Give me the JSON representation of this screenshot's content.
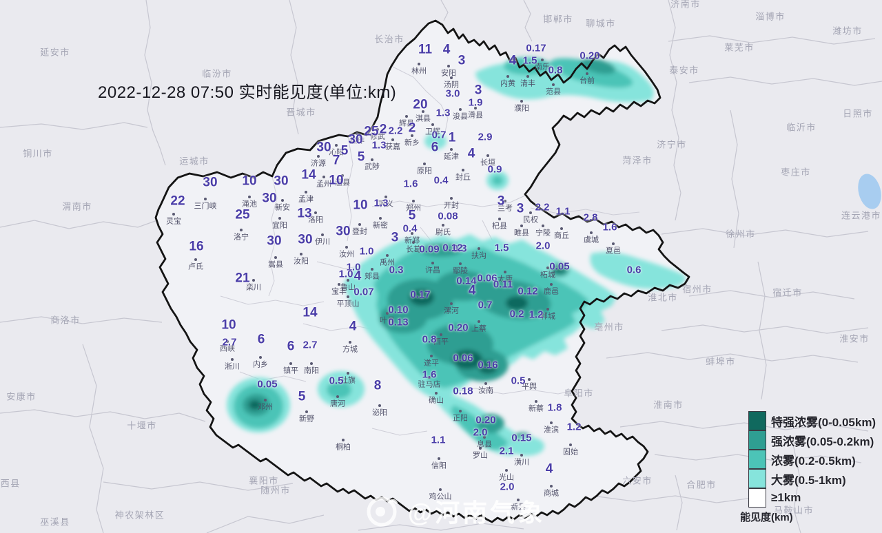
{
  "title": "2022-12-28 07:50 实时能见度(单位:km)",
  "watermark": "@河南气象",
  "legend": {
    "title": "能见度(km)",
    "items": [
      {
        "label": "特强浓雾(0-0.05km)",
        "color": "#10695e"
      },
      {
        "label": "强浓雾(0.05-0.2km)",
        "color": "#2f9e92"
      },
      {
        "label": "浓雾(0.2-0.5km)",
        "color": "#4cc4b7"
      },
      {
        "label": "大雾(0.5-1km)",
        "color": "#86e4dc"
      },
      {
        "label": "≥1km",
        "color": "#ffffff"
      }
    ]
  },
  "colors": {
    "background": "#eaeaef",
    "province_border": "#141414",
    "boundary_lines": "#c3c3cd",
    "value_text": "#4a3da8",
    "place_text": "#4b4b64",
    "outside_text": "#a4a5b4"
  },
  "values": [
    [
      "11",
      617,
      72
    ],
    [
      "4",
      648,
      72
    ],
    [
      "3",
      670,
      88
    ],
    [
      "0.17",
      778,
      70
    ],
    [
      "4",
      744,
      88
    ],
    [
      "1.5",
      769,
      88
    ],
    [
      "0.8",
      806,
      102
    ],
    [
      "0.20",
      856,
      81
    ],
    [
      "3.0",
      657,
      136
    ],
    [
      "3",
      694,
      131
    ],
    [
      "1.9",
      690,
      149
    ],
    [
      "20",
      610,
      152
    ],
    [
      "1.3",
      643,
      164
    ],
    [
      "25",
      539,
      191
    ],
    [
      "2",
      556,
      188
    ],
    [
      "2.2",
      574,
      190
    ],
    [
      "2",
      598,
      186
    ],
    [
      "0.7",
      637,
      196
    ],
    [
      "1",
      656,
      200
    ],
    [
      "6",
      631,
      214
    ],
    [
      "2.9",
      704,
      199
    ],
    [
      "4",
      684,
      223
    ],
    [
      "30",
      516,
      203
    ],
    [
      "1.3",
      550,
      211
    ],
    [
      "30",
      470,
      214
    ],
    [
      "5",
      500,
      219
    ],
    [
      "5",
      524,
      228
    ],
    [
      "7",
      488,
      233
    ],
    [
      "14",
      448,
      254
    ],
    [
      "10",
      488,
      262
    ],
    [
      "1.6",
      596,
      267
    ],
    [
      "0.4",
      640,
      262
    ],
    [
      "0.9",
      718,
      246
    ],
    [
      "30",
      305,
      265
    ],
    [
      "10",
      362,
      263
    ],
    [
      "30",
      408,
      263
    ],
    [
      "22",
      258,
      292
    ],
    [
      "25",
      352,
      312
    ],
    [
      "13",
      442,
      310
    ],
    [
      "16",
      285,
      358
    ],
    [
      "30",
      398,
      350
    ],
    [
      "30",
      443,
      348
    ],
    [
      "30",
      391,
      288
    ],
    [
      "21",
      352,
      404
    ],
    [
      "10",
      523,
      298
    ],
    [
      "1.3",
      553,
      295
    ],
    [
      "5",
      598,
      313
    ],
    [
      "0.4",
      595,
      332
    ],
    [
      "3",
      573,
      345
    ],
    [
      "0.08",
      650,
      314
    ],
    [
      "30",
      498,
      336
    ],
    [
      "1.0",
      532,
      365
    ],
    [
      "1.0",
      513,
      388
    ],
    [
      "1.0",
      502,
      398
    ],
    [
      "4",
      519,
      401
    ],
    [
      "0.3",
      667,
      361
    ],
    [
      "0.09",
      623,
      362
    ],
    [
      "0.12",
      657,
      360
    ],
    [
      "0.3",
      575,
      392
    ],
    [
      "3",
      727,
      292
    ],
    [
      "3",
      755,
      303
    ],
    [
      "2.2",
      787,
      301
    ],
    [
      "1.1",
      817,
      307
    ],
    [
      "2.8",
      857,
      316
    ],
    [
      "1.6",
      885,
      330
    ],
    [
      "1.5",
      728,
      360
    ],
    [
      "2.0",
      788,
      357
    ],
    [
      "0.05",
      812,
      387
    ],
    [
      "0.6",
      920,
      392
    ],
    [
      "0.07",
      528,
      424
    ],
    [
      "0.17",
      610,
      428
    ],
    [
      "0.10",
      578,
      450
    ],
    [
      "0.13",
      578,
      468
    ],
    [
      "0.14",
      677,
      408
    ],
    [
      "0.06",
      707,
      404
    ],
    [
      "0.11",
      730,
      413
    ],
    [
      "0.12",
      766,
      423
    ],
    [
      "4",
      685,
      422
    ],
    [
      "0.7",
      704,
      443
    ],
    [
      "0.2",
      750,
      456
    ],
    [
      "1.2",
      778,
      457
    ],
    [
      "0.20",
      665,
      476
    ],
    [
      "0.8",
      623,
      493
    ],
    [
      "0.06",
      672,
      520
    ],
    [
      "0.16",
      708,
      530
    ],
    [
      "1.6",
      623,
      544
    ],
    [
      "0.18",
      672,
      568
    ],
    [
      "0.5",
      752,
      553
    ],
    [
      "14",
      450,
      454
    ],
    [
      "4",
      512,
      474
    ],
    [
      "10",
      332,
      472
    ],
    [
      "2.7",
      333,
      497
    ],
    [
      "6",
      379,
      493
    ],
    [
      "6",
      422,
      503
    ],
    [
      "2.7",
      450,
      501
    ],
    [
      "0.05",
      388,
      558
    ],
    [
      "5",
      438,
      576
    ],
    [
      "0.5",
      488,
      553
    ],
    [
      "8",
      548,
      560
    ],
    [
      "1.8",
      805,
      592
    ],
    [
      "0.20",
      705,
      610
    ],
    [
      "2.0",
      697,
      628
    ],
    [
      "0.15",
      757,
      636
    ],
    [
      "1.2",
      833,
      620
    ],
    [
      "1.1",
      636,
      639
    ],
    [
      "2.1",
      735,
      655
    ],
    [
      "2.0",
      736,
      707
    ],
    [
      "4",
      797,
      681
    ]
  ],
  "places": [
    [
      "林州",
      608,
      104
    ],
    [
      "安阳",
      651,
      107
    ],
    [
      "汤阴",
      655,
      124
    ],
    [
      "内黄",
      737,
      122
    ],
    [
      "清丰",
      766,
      122
    ],
    [
      "南乐",
      787,
      98
    ],
    [
      "台前",
      852,
      118
    ],
    [
      "范县",
      803,
      134
    ],
    [
      "濮阳",
      757,
      158
    ],
    [
      "淇县",
      614,
      173
    ],
    [
      "浚县",
      668,
      170
    ],
    [
      "滑县",
      690,
      168
    ],
    [
      "卫辉",
      628,
      192
    ],
    [
      "辉县",
      590,
      180
    ],
    [
      "新乡",
      598,
      208
    ],
    [
      "获嘉",
      570,
      214
    ],
    [
      "修武",
      548,
      199
    ],
    [
      "焦作",
      518,
      205
    ],
    [
      "沁阳",
      488,
      222
    ],
    [
      "济源",
      462,
      238
    ],
    [
      "孟州",
      470,
      268
    ],
    [
      "温县",
      497,
      266
    ],
    [
      "武陟",
      540,
      243
    ],
    [
      "原阳",
      616,
      249
    ],
    [
      "延津",
      655,
      228
    ],
    [
      "封丘",
      672,
      258
    ],
    [
      "长垣",
      708,
      237
    ],
    [
      "三门峡",
      298,
      300
    ],
    [
      "灵宝",
      252,
      322
    ],
    [
      "渑池",
      362,
      297
    ],
    [
      "新安",
      410,
      302
    ],
    [
      "孟津",
      444,
      290
    ],
    [
      "洛阳",
      458,
      320
    ],
    [
      "宜阳",
      406,
      328
    ],
    [
      "洛宁",
      350,
      345
    ],
    [
      "卢氏",
      284,
      388
    ],
    [
      "栾川",
      368,
      418
    ],
    [
      "嵩县",
      400,
      385
    ],
    [
      "汝阳",
      437,
      380
    ],
    [
      "伊川",
      468,
      352
    ],
    [
      "巩义",
      560,
      297
    ],
    [
      "郑州",
      600,
      303
    ],
    [
      "新密",
      552,
      328
    ],
    [
      "新郑",
      598,
      350
    ],
    [
      "登封",
      522,
      337
    ],
    [
      "汝州",
      503,
      370
    ],
    [
      "郏县",
      540,
      402
    ],
    [
      "禹州",
      562,
      382
    ],
    [
      "开封",
      655,
      299
    ],
    [
      "尉氏",
      643,
      338
    ],
    [
      "长葛",
      600,
      363
    ],
    [
      "许昌",
      628,
      393
    ],
    [
      "鄢陵",
      668,
      394
    ],
    [
      "扶沟",
      695,
      372
    ],
    [
      "兰考",
      733,
      303
    ],
    [
      "杞县",
      725,
      329
    ],
    [
      "民权",
      770,
      320
    ],
    [
      "睢县",
      757,
      339
    ],
    [
      "宁陵",
      788,
      339
    ],
    [
      "商丘",
      815,
      343
    ],
    [
      "虞城",
      858,
      349
    ],
    [
      "夏邑",
      890,
      365
    ],
    [
      "柘城",
      795,
      400
    ],
    [
      "太康",
      733,
      406
    ],
    [
      "鹿邑",
      800,
      424
    ],
    [
      "郸城",
      795,
      460
    ],
    [
      "宝丰",
      492,
      424
    ],
    [
      "平顶山",
      505,
      442
    ],
    [
      "鲁山",
      505,
      418
    ],
    [
      "叶县",
      562,
      466
    ],
    [
      "漯河",
      655,
      452
    ],
    [
      "上蔡",
      695,
      478
    ],
    [
      "西平",
      640,
      497
    ],
    [
      "西峡",
      330,
      507
    ],
    [
      "内乡",
      378,
      530
    ],
    [
      "淅川",
      337,
      533
    ],
    [
      "邓州",
      385,
      592
    ],
    [
      "镇平",
      422,
      539
    ],
    [
      "南阳",
      452,
      539
    ],
    [
      "方城",
      508,
      508
    ],
    [
      "社旗",
      505,
      553
    ],
    [
      "唐河",
      490,
      587
    ],
    [
      "新野",
      445,
      609
    ],
    [
      "桐柏",
      498,
      650
    ],
    [
      "驻马店",
      623,
      559
    ],
    [
      "遂平",
      626,
      528
    ],
    [
      "确山",
      633,
      582
    ],
    [
      "泌阳",
      551,
      600
    ],
    [
      "汝南",
      705,
      568
    ],
    [
      "平舆",
      768,
      562
    ],
    [
      "新蔡",
      778,
      594
    ],
    [
      "正阳",
      668,
      608
    ],
    [
      "淮滨",
      800,
      625
    ],
    [
      "信阳",
      637,
      677
    ],
    [
      "罗山",
      697,
      662
    ],
    [
      "息县",
      703,
      646
    ],
    [
      "潢川",
      757,
      672
    ],
    [
      "光山",
      735,
      694
    ],
    [
      "固始",
      828,
      657
    ],
    [
      "商城",
      800,
      717
    ],
    [
      "新县",
      752,
      737
    ],
    [
      "鸡公山",
      639,
      722
    ]
  ],
  "outside_places": [
    [
      "延安市",
      80,
      76
    ],
    [
      "临汾市",
      315,
      107
    ],
    [
      "长治市",
      565,
      57
    ],
    [
      "邯郸市",
      810,
      28
    ],
    [
      "聊城市",
      872,
      34
    ],
    [
      "济南市",
      995,
      6
    ],
    [
      "淄博市",
      1118,
      24
    ],
    [
      "潍坊市",
      1230,
      45
    ],
    [
      "莱芜市",
      1073,
      69
    ],
    [
      "泰安市",
      993,
      102
    ],
    [
      "日照市",
      1245,
      165
    ],
    [
      "临沂市",
      1163,
      185
    ],
    [
      "济宁市",
      975,
      210
    ],
    [
      "菏泽市",
      925,
      233
    ],
    [
      "枣庄市",
      1155,
      250
    ],
    [
      "连云港市",
      1250,
      313
    ],
    [
      "徐州市",
      1075,
      340
    ],
    [
      "宿迁市",
      1143,
      425
    ],
    [
      "淮安市",
      1240,
      492
    ],
    [
      "淮北市",
      962,
      432
    ],
    [
      "宿州市",
      1012,
      420
    ],
    [
      "亳州市",
      884,
      475
    ],
    [
      "蚌埠市",
      1046,
      525
    ],
    [
      "阜阳市",
      840,
      571
    ],
    [
      "淮南市",
      970,
      588
    ],
    [
      "六安市",
      925,
      698
    ],
    [
      "合肥市",
      1018,
      704
    ],
    [
      "马鞍山市",
      1152,
      741
    ],
    [
      "随州市",
      400,
      712
    ],
    [
      "襄阳市",
      383,
      698
    ],
    [
      "十堰市",
      206,
      618
    ],
    [
      "安康市",
      31,
      576
    ],
    [
      "神农架林区",
      203,
      748
    ],
    [
      "巫溪县",
      80,
      758
    ],
    [
      "郧西县",
      8,
      702
    ],
    [
      "商洛市",
      95,
      465
    ],
    [
      "渭南市",
      112,
      300
    ],
    [
      "铜川市",
      55,
      223
    ],
    [
      "运城市",
      282,
      234
    ],
    [
      "晋城市",
      437,
      163
    ]
  ]
}
